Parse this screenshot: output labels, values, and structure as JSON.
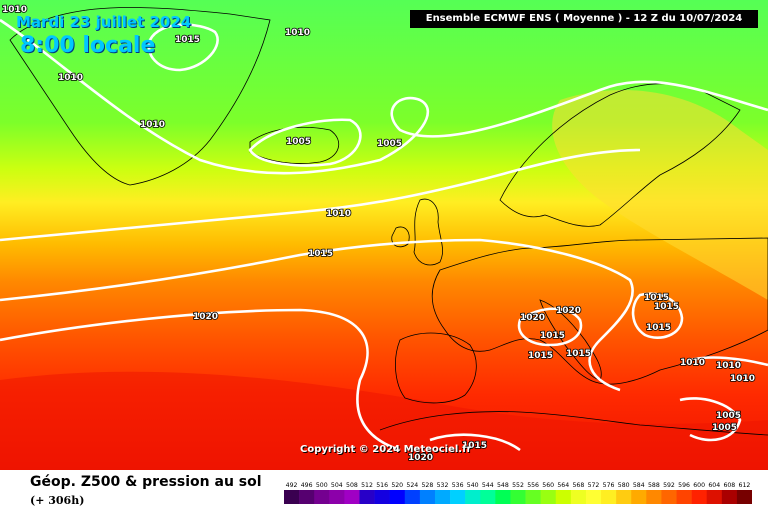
{
  "header": {
    "date": "Mardi 23 juillet 2024",
    "local_time": "8:00 locale",
    "model_banner": "Ensemble ECMWF ENS  ( Moyenne )  -  12 Z du 10/07/2024"
  },
  "copyright": "Copyright © 2024 Meteociel.fr",
  "footer": {
    "parameter": "Géop. Z500 & pression au sol",
    "lead_time": "(+ 306h)"
  },
  "colors": {
    "ocean": "#2b5fd6",
    "land_outline": "#000000",
    "isobar": "#ffffff",
    "bands_north_to_south": [
      "#55ff55",
      "#77ff33",
      "#aaff22",
      "#ddff11",
      "#ffff33",
      "#ffee22",
      "#ffcc11",
      "#ffaa00",
      "#ff8800",
      "#ff6600",
      "#ff4400",
      "#ff2200",
      "#ee1100"
    ]
  },
  "isobar_labels": [
    "1010",
    "1015",
    "1010",
    "1010",
    "1010",
    "1005",
    "1005",
    "1010",
    "1015",
    "1020",
    "1020",
    "1020",
    "1015",
    "1015",
    "1015",
    "1015",
    "1015",
    "1015",
    "1010",
    "1010",
    "1010",
    "1005",
    "1005",
    "1015",
    "1020"
  ],
  "legend": {
    "values": [
      "492",
      "496",
      "500",
      "504",
      "508",
      "512",
      "516",
      "520",
      "524",
      "528",
      "532",
      "536",
      "540",
      "544",
      "548",
      "552",
      "556",
      "560",
      "564",
      "568",
      "572",
      "576",
      "580",
      "584",
      "588",
      "592",
      "596",
      "600",
      "604",
      "608",
      "612"
    ],
    "colors": [
      "#3a0050",
      "#560070",
      "#740090",
      "#8c00aa",
      "#a000c4",
      "#2800c8",
      "#1400e0",
      "#0000ff",
      "#0040ff",
      "#0080ff",
      "#00aaff",
      "#00d0ff",
      "#00eecc",
      "#00ff99",
      "#00ff55",
      "#33ff33",
      "#66ff22",
      "#99ff11",
      "#ccff00",
      "#eeff22",
      "#ffff33",
      "#ffee22",
      "#ffcc11",
      "#ffaa00",
      "#ff8800",
      "#ff6600",
      "#ff4400",
      "#ff2200",
      "#dd1100",
      "#aa0000",
      "#770000"
    ]
  }
}
